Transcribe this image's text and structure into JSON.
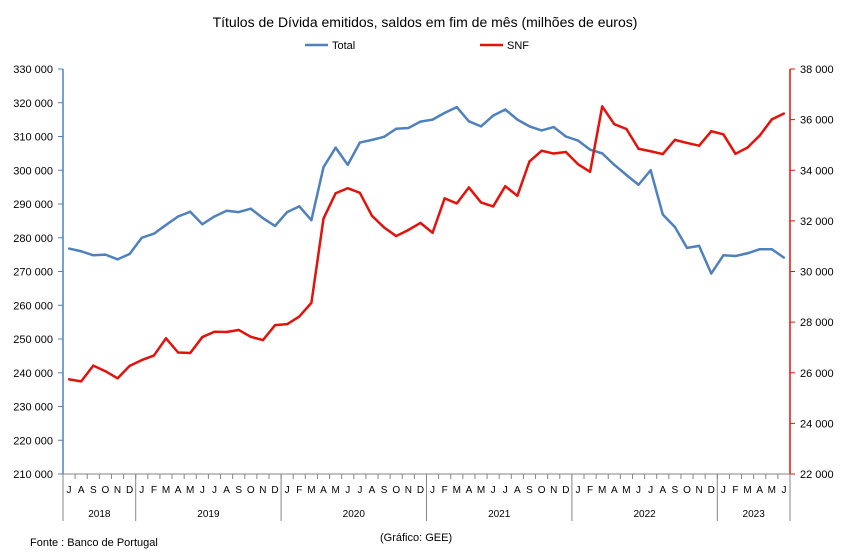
{
  "title": "Títulos de Dívida emitidos, saldos em fim de mês  (milhões de euros)",
  "footer": {
    "source": "Fonte : Banco de Portugal",
    "credit": "(Gráfico: GEE)"
  },
  "chart_data": {
    "type": "line",
    "title": "Títulos de Dívida emitidos, saldos em fim de mês  (milhões de euros)",
    "legend_position": "top",
    "grid": false,
    "categories": [
      "J",
      "A",
      "S",
      "O",
      "N",
      "D",
      "J",
      "F",
      "M",
      "A",
      "M",
      "J",
      "J",
      "A",
      "S",
      "O",
      "N",
      "D",
      "J",
      "F",
      "M",
      "A",
      "M",
      "J",
      "J",
      "A",
      "S",
      "O",
      "N",
      "D",
      "J",
      "F",
      "M",
      "A",
      "M",
      "J",
      "J",
      "A",
      "S",
      "O",
      "N",
      "D",
      "J",
      "F",
      "M",
      "A",
      "M",
      "J",
      "J",
      "A",
      "S",
      "O",
      "N",
      "D",
      "J",
      "F",
      "M",
      "A",
      "M",
      "J"
    ],
    "groups": [
      {
        "label": "2018",
        "count": 6
      },
      {
        "label": "2019",
        "count": 12
      },
      {
        "label": "2020",
        "count": 12
      },
      {
        "label": "2021",
        "count": 12
      },
      {
        "label": "2022",
        "count": 12
      },
      {
        "label": "2023",
        "count": 6
      }
    ],
    "y_left": {
      "min": 210000,
      "max": 330000,
      "color": "#4F81BD",
      "ticks": [
        {
          "value": 210000,
          "label": "210 000"
        },
        {
          "value": 220000,
          "label": "220 000"
        },
        {
          "value": 230000,
          "label": "230 000"
        },
        {
          "value": 240000,
          "label": "240 000"
        },
        {
          "value": 250000,
          "label": "250 000"
        },
        {
          "value": 260000,
          "label": "260 000"
        },
        {
          "value": 270000,
          "label": "270 000"
        },
        {
          "value": 280000,
          "label": "280 000"
        },
        {
          "value": 290000,
          "label": "290 000"
        },
        {
          "value": 300000,
          "label": "300 000"
        },
        {
          "value": 310000,
          "label": "310 000"
        },
        {
          "value": 320000,
          "label": "320 000"
        },
        {
          "value": 330000,
          "label": "330 000"
        }
      ]
    },
    "y_right": {
      "min": 22000,
      "max": 38000,
      "color": "#E3120B",
      "ticks": [
        {
          "value": 22000,
          "label": "22 000"
        },
        {
          "value": 24000,
          "label": "24 000"
        },
        {
          "value": 26000,
          "label": "26 000"
        },
        {
          "value": 28000,
          "label": "28 000"
        },
        {
          "value": 30000,
          "label": "30 000"
        },
        {
          "value": 32000,
          "label": "32 000"
        },
        {
          "value": 34000,
          "label": "34 000"
        },
        {
          "value": 36000,
          "label": "36 000"
        },
        {
          "value": 38000,
          "label": "38 000"
        }
      ]
    },
    "series": [
      {
        "name": "Total",
        "axis": "left",
        "color": "#4F81BD",
        "values": [
          276800,
          276000,
          274800,
          275000,
          273600,
          275200,
          280000,
          281200,
          283800,
          286300,
          287700,
          284000,
          286300,
          288000,
          287600,
          288600,
          285800,
          283500,
          287600,
          289300,
          285200,
          300900,
          306700,
          301600,
          308200,
          309000,
          309900,
          312300,
          312500,
          314400,
          315000,
          317000,
          318700,
          314500,
          313000,
          316200,
          318000,
          315000,
          313000,
          311800,
          312800,
          310000,
          308800,
          306100,
          305000,
          301600,
          298600,
          295700,
          300000,
          286900,
          283200,
          277000,
          277600,
          269400,
          274800,
          274600,
          275400,
          276600,
          276600,
          274100
        ]
      },
      {
        "name": "SNF",
        "axis": "right",
        "color": "#E3120B",
        "values": [
          25740,
          25660,
          26280,
          26060,
          25780,
          26270,
          26500,
          26680,
          27360,
          26800,
          26780,
          27410,
          27620,
          27610,
          27690,
          27420,
          27290,
          27880,
          27920,
          28220,
          28760,
          32090,
          33090,
          33290,
          33110,
          32200,
          31740,
          31400,
          31640,
          31920,
          31530,
          32890,
          32690,
          33320,
          32730,
          32570,
          33370,
          32990,
          34350,
          34770,
          34660,
          34720,
          34240,
          33940,
          36520,
          35820,
          35630,
          34850,
          34750,
          34640,
          35200,
          35080,
          34970,
          35540,
          35420,
          34650,
          34900,
          35370,
          36010,
          36240
        ]
      }
    ]
  }
}
